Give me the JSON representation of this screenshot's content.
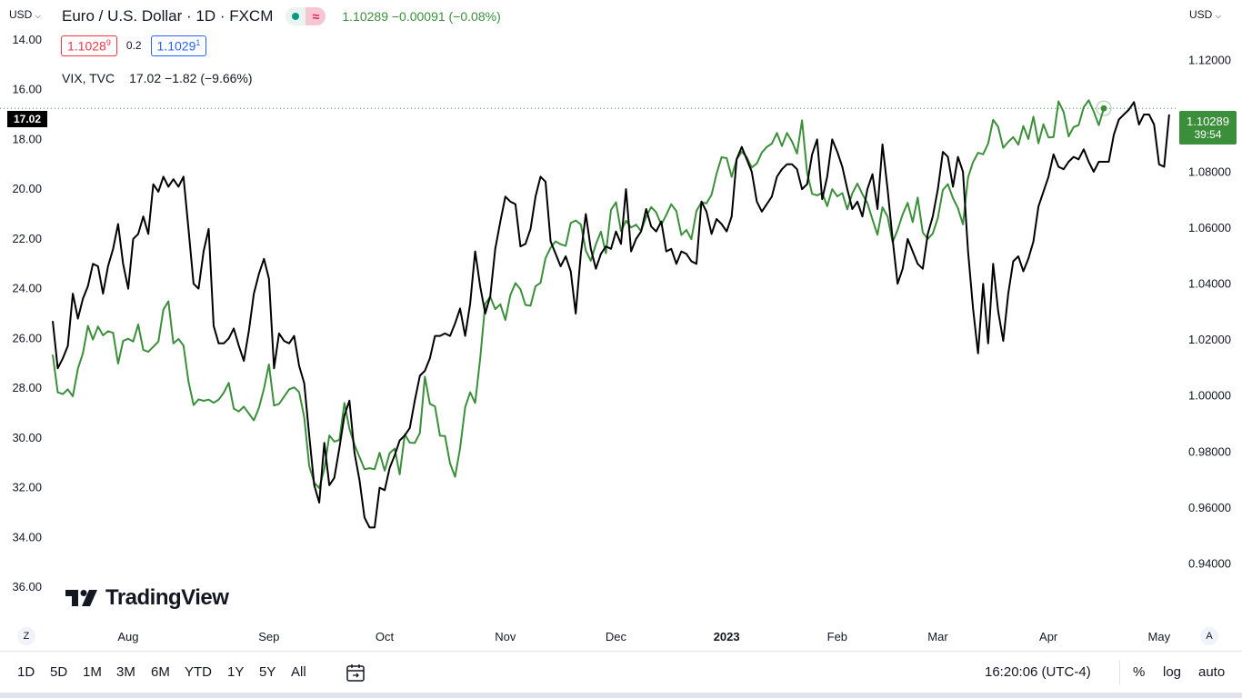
{
  "header": {
    "left_currency": "USD",
    "right_currency": "USD",
    "symbol_title": "Euro / U.S. Dollar · 1D · FXCM",
    "last_change": "1.10289 −0.00091 (−0.08%)",
    "bid": "1.1028",
    "bid_sup": "9",
    "spread": "0.2",
    "ask": "1.1029",
    "ask_sup": "1",
    "compare_legend": "VIX, TVC",
    "compare_values": "17.02 −1.82 (−9.66%)",
    "left_marker": "17.02",
    "right_price": "1.10289",
    "right_countdown": "39:54",
    "logo_text": "TradingView"
  },
  "colors": {
    "eurusd_line": "#3b8f3b",
    "vix_line": "#000000",
    "price_label_bg": "#3b8f3b",
    "bid_color": "#f23645",
    "ask_color": "#2962ff",
    "change_color": "#3b8f3b"
  },
  "toolbar": {
    "ranges": [
      "1D",
      "5D",
      "1M",
      "3M",
      "6M",
      "YTD",
      "1Y",
      "5Y",
      "All"
    ],
    "calendar_icon": "calendar-range-icon",
    "time": "16:20:06 (UTC-4)",
    "percent": "%",
    "log": "log",
    "auto": "auto",
    "left_scale_btn": "Z",
    "right_scale_btn": "A"
  },
  "chart_data": {
    "type": "line",
    "x_labels": [
      "Aug",
      "Sep",
      "Oct",
      "Nov",
      "Dec",
      "2023",
      "Feb",
      "Mar",
      "Apr",
      "May"
    ],
    "left_axis": {
      "inverted": true,
      "range": [
        13.2,
        36.8
      ],
      "ticks": [
        "14.00",
        "16.00",
        "18.00",
        "20.00",
        "22.00",
        "24.00",
        "26.00",
        "28.00",
        "30.00",
        "32.00",
        "34.00",
        "36.00"
      ]
    },
    "right_axis": {
      "range": [
        0.9245,
        1.1345
      ],
      "ticks": [
        "1.12000",
        "1.10000",
        "1.08000",
        "1.06000",
        "1.04000",
        "1.02000",
        "1.00000",
        "0.98000",
        "0.96000",
        "0.94000"
      ]
    },
    "series": [
      {
        "name": "Euro / U.S. Dollar",
        "axis": "right",
        "values": [
          1.0148,
          1.0013,
          1.0007,
          1.0024,
          0.9999,
          1.0098,
          1.0153,
          1.0251,
          1.0202,
          1.0249,
          1.0217,
          1.0232,
          1.0226,
          1.0116,
          1.0197,
          1.0205,
          1.0195,
          1.0256,
          1.0165,
          1.0158,
          1.0176,
          1.0195,
          1.0309,
          1.0339,
          1.0188,
          1.0204,
          1.0181,
          1.0052,
          0.9968,
          0.9988,
          0.9983,
          0.9987,
          0.9976,
          0.9987,
          1.0012,
          1.0047,
          0.9955,
          0.9945,
          0.9962,
          0.9937,
          0.9913,
          0.9958,
          1.0026,
          1.0113,
          0.9966,
          0.9972,
          0.9998,
          1.0024,
          1.0031,
          1.0014,
          0.9924,
          0.975,
          0.969,
          0.9671,
          0.9739,
          0.9859,
          0.9837,
          0.9843,
          0.9975,
          0.9883,
          0.9825,
          0.9782,
          0.9738,
          0.9742,
          0.9738,
          0.9797,
          0.9733,
          0.9796,
          0.9812,
          0.972,
          0.9863,
          0.9833,
          0.9832,
          0.9868,
          1.0069,
          0.9972,
          0.9963,
          0.9858,
          0.9857,
          0.9759,
          0.9711,
          0.9813,
          0.996,
          1.0013,
          0.9975,
          1.0133,
          1.033,
          1.0355,
          1.0311,
          1.0328,
          1.0272,
          1.0361,
          1.0404,
          1.0382,
          1.0326,
          1.0323,
          1.0393,
          1.0405,
          1.0493,
          1.0531,
          1.0553,
          1.0543,
          1.0537,
          1.0619,
          1.0628,
          1.0614,
          1.052,
          1.0484,
          1.0543,
          1.0588,
          1.0511,
          1.0666,
          1.0693,
          1.059,
          1.0627,
          1.0603,
          1.0613,
          1.059,
          1.0641,
          1.0676,
          1.0657,
          1.0613,
          1.0648,
          1.0686,
          1.0661,
          1.0576,
          1.0594,
          1.0561,
          1.0662,
          1.0693,
          1.0689,
          1.072,
          1.0795,
          1.0854,
          1.0851,
          1.0784,
          1.0847,
          1.0874,
          1.0854,
          1.0817,
          1.0832,
          1.0871,
          1.0891,
          1.0903,
          1.0941,
          1.0894,
          1.0941,
          1.091,
          1.0867,
          1.0986,
          1.0799,
          1.0723,
          1.0718,
          1.0726,
          1.0679,
          1.074,
          1.0714,
          1.0726,
          1.0668,
          1.0725,
          1.076,
          1.0722,
          1.069,
          1.0631,
          1.0577,
          1.0675,
          1.0642,
          1.055,
          1.0594,
          1.065,
          1.0691,
          1.0622,
          1.071,
          1.0585,
          1.0562,
          1.0581,
          1.0637,
          1.0737,
          1.0758,
          1.0708,
          1.0672,
          1.0614,
          1.0782,
          1.0837,
          1.087,
          1.0865,
          1.0903,
          1.0988,
          1.0963,
          1.0888,
          1.0909,
          1.0926,
          1.0899,
          1.0966,
          1.0919,
          1.0999,
          1.0904,
          1.0972,
          1.0925,
          1.0926,
          1.1054,
          1.1016,
          1.0929,
          1.0962,
          1.0969,
          1.1033,
          1.1058,
          1.1018,
          1.0969,
          1.1029
        ]
      },
      {
        "name": "VIX, TVC",
        "axis": "left",
        "values": [
          25.3,
          27.2,
          26.8,
          26.3,
          24.2,
          25.2,
          24.4,
          23.9,
          23.0,
          23.1,
          24.2,
          23.1,
          22.4,
          21.4,
          23.0,
          24.0,
          22.0,
          21.8,
          21.1,
          21.8,
          19.8,
          20.1,
          19.5,
          19.9,
          19.6,
          19.9,
          19.5,
          21.6,
          23.8,
          24.0,
          22.5,
          21.6,
          25.5,
          26.2,
          26.2,
          26.0,
          25.6,
          26.3,
          26.9,
          25.7,
          24.2,
          23.4,
          22.8,
          23.6,
          27.2,
          25.8,
          26.1,
          26.2,
          25.9,
          27.1,
          27.8,
          29.9,
          31.9,
          32.6,
          30.2,
          31.9,
          31.6,
          30.4,
          29.1,
          28.5,
          30.6,
          31.7,
          33.2,
          33.6,
          33.6,
          32.0,
          32.1,
          31.2,
          30.7,
          30.1,
          29.9,
          29.6,
          28.5,
          27.5,
          27.3,
          26.8,
          25.9,
          25.9,
          25.8,
          25.9,
          25.4,
          24.8,
          25.9,
          24.6,
          22.5,
          23.9,
          25.0,
          24.3,
          22.4,
          21.3,
          20.3,
          20.5,
          20.6,
          22.3,
          22.2,
          21.6,
          20.3,
          19.5,
          19.7,
          22.1,
          22.6,
          23.1,
          22.7,
          23.3,
          25.0,
          22.6,
          21.0,
          22.4,
          23.2,
          22.6,
          22.3,
          22.4,
          21.7,
          22.2,
          20.0,
          22.5,
          22.0,
          21.7,
          20.8,
          21.5,
          21.7,
          21.3,
          22.5,
          22.4,
          23.0,
          22.5,
          22.6,
          22.9,
          23.0,
          20.5,
          20.9,
          21.8,
          21.2,
          21.4,
          21.7,
          21.1,
          18.8,
          18.3,
          18.8,
          19.3,
          20.5,
          20.9,
          20.6,
          20.3,
          19.5,
          19.2,
          19.0,
          19.0,
          19.2,
          20.0,
          19.8,
          18.6,
          18.0,
          20.4,
          19.5,
          18.0,
          18.5,
          19.1,
          20.0,
          20.8,
          20.5,
          21.1,
          20.0,
          19.4,
          20.8,
          18.2,
          20.0,
          22.0,
          23.8,
          23.2,
          22.0,
          22.5,
          23.0,
          23.2,
          21.8,
          21.1,
          20.0,
          18.5,
          18.7,
          19.9,
          18.7,
          19.3,
          22.5,
          24.8,
          26.6,
          23.8,
          26.2,
          23.0,
          24.9,
          26.1,
          24.2,
          22.9,
          22.7,
          23.3,
          22.8,
          22.1,
          20.7,
          20.1,
          19.5,
          18.6,
          19.1,
          19.2,
          18.9,
          18.7,
          18.8,
          18.4,
          18.9,
          19.3,
          18.9,
          18.9,
          18.9,
          17.8,
          17.2,
          17.0,
          16.8,
          16.5,
          17.4,
          17.0,
          17.0,
          17.4,
          19.0,
          19.1,
          17.0
        ]
      }
    ]
  }
}
